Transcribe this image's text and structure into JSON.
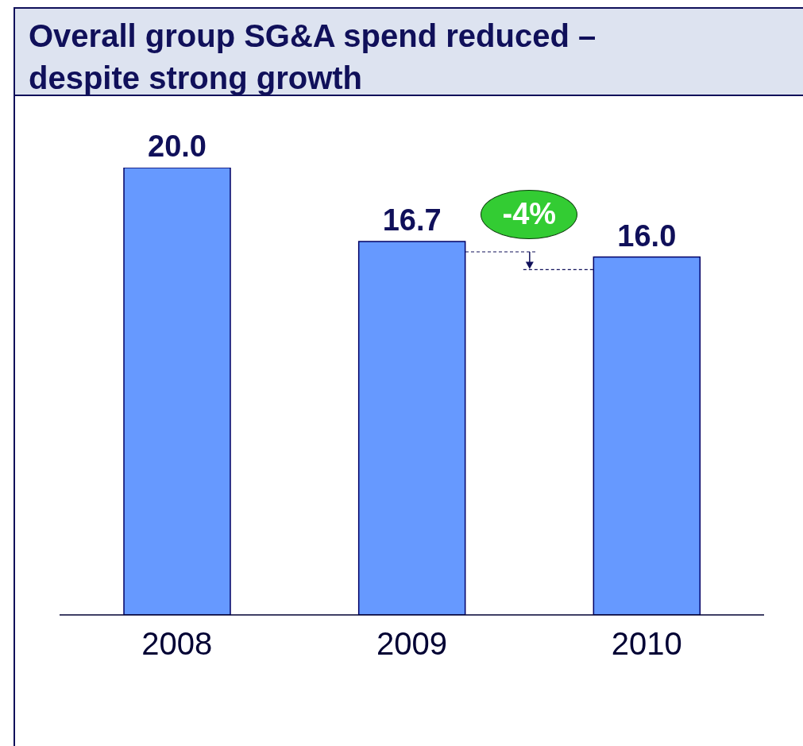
{
  "chart_data": {
    "type": "bar",
    "title": "Overall group SG&A spend reduced – despite strong growth",
    "categories": [
      "2008",
      "2009",
      "2010"
    ],
    "values": [
      20.0,
      16.7,
      16.0
    ],
    "color": "#6699ff",
    "value_labels": [
      "20.0",
      "16.7",
      "16.0"
    ],
    "annotations": [
      "-4%"
    ]
  }
}
